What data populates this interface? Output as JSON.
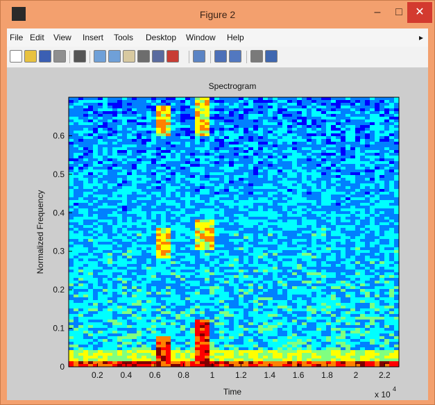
{
  "window": {
    "title": "Figure 2",
    "minimize": "–",
    "maximize": "□",
    "close": "✕"
  },
  "menubar": {
    "items": [
      "File",
      "Edit",
      "View",
      "Insert",
      "Tools",
      "Desktop",
      "Window",
      "Help"
    ],
    "overflow": "▸"
  },
  "toolbar": {
    "buttons": [
      {
        "icon": "new-figure-icon",
        "color": "#ffffff"
      },
      {
        "icon": "open-folder-icon",
        "color": "#e8c240"
      },
      {
        "icon": "save-icon",
        "color": "#3b5fb3"
      },
      {
        "icon": "print-icon",
        "color": "#8f8f8f"
      },
      {
        "icon": "select-arrow-icon",
        "color": "#555555"
      },
      {
        "icon": "zoom-in-icon",
        "color": "#6fa0d8"
      },
      {
        "icon": "zoom-out-icon",
        "color": "#6fa0d8"
      },
      {
        "icon": "pan-hand-icon",
        "color": "#d8c9a0"
      },
      {
        "icon": "rotate-3d-icon",
        "color": "#6d6d6d"
      },
      {
        "icon": "data-cursor-icon",
        "color": "#5a6b9f"
      },
      {
        "icon": "brush-icon",
        "color": "#c83d34"
      },
      {
        "icon": "link-plot-icon",
        "color": "#5b84c4"
      },
      {
        "icon": "colorbar-icon",
        "color": "#4d70b8"
      },
      {
        "icon": "legend-icon",
        "color": "#5278c0"
      },
      {
        "icon": "hide-plot-tools-icon",
        "color": "#7a7a7a"
      },
      {
        "icon": "show-plot-tools-icon",
        "color": "#3f67b0"
      }
    ]
  },
  "chart_data": {
    "type": "heatmap",
    "title": "Spectrogram",
    "xlabel": "Time",
    "ylabel": "Normalized Frequency",
    "x_exponent_label": "x 10",
    "x_exponent_power": "4",
    "xlim": [
      0,
      2.3
    ],
    "ylim": [
      0,
      0.7
    ],
    "xticks": [
      "0.2",
      "0.4",
      "0.6",
      "0.8",
      "1",
      "1.2",
      "1.4",
      "1.6",
      "1.8",
      "2",
      "2.2"
    ],
    "yticks": [
      "0",
      "0.1",
      "0.2",
      "0.3",
      "0.4",
      "0.5",
      "0.6"
    ],
    "colormap": [
      "#00008f",
      "#0000ff",
      "#0080ff",
      "#00ffff",
      "#80ff80",
      "#ffff00",
      "#ff8000",
      "#ff0000",
      "#800000"
    ],
    "description_regions": [
      {
        "x": [
          0.6,
          0.72
        ],
        "y": [
          0.0,
          0.08
        ],
        "level": "high"
      },
      {
        "x": [
          0.88,
          0.98
        ],
        "y": [
          0.0,
          0.12
        ],
        "level": "high"
      },
      {
        "x": [
          0.62,
          0.72
        ],
        "y": [
          0.28,
          0.36
        ],
        "level": "medium"
      },
      {
        "x": [
          0.88,
          1.0
        ],
        "y": [
          0.3,
          0.38
        ],
        "level": "medium"
      },
      {
        "x": [
          0.62,
          0.72
        ],
        "y": [
          0.6,
          0.68
        ],
        "level": "medium"
      },
      {
        "x": [
          0.88,
          0.98
        ],
        "y": [
          0.6,
          0.7
        ],
        "level": "medium"
      },
      {
        "x": [
          0,
          2.3
        ],
        "y": [
          0,
          0.015
        ],
        "level": "high"
      }
    ]
  }
}
